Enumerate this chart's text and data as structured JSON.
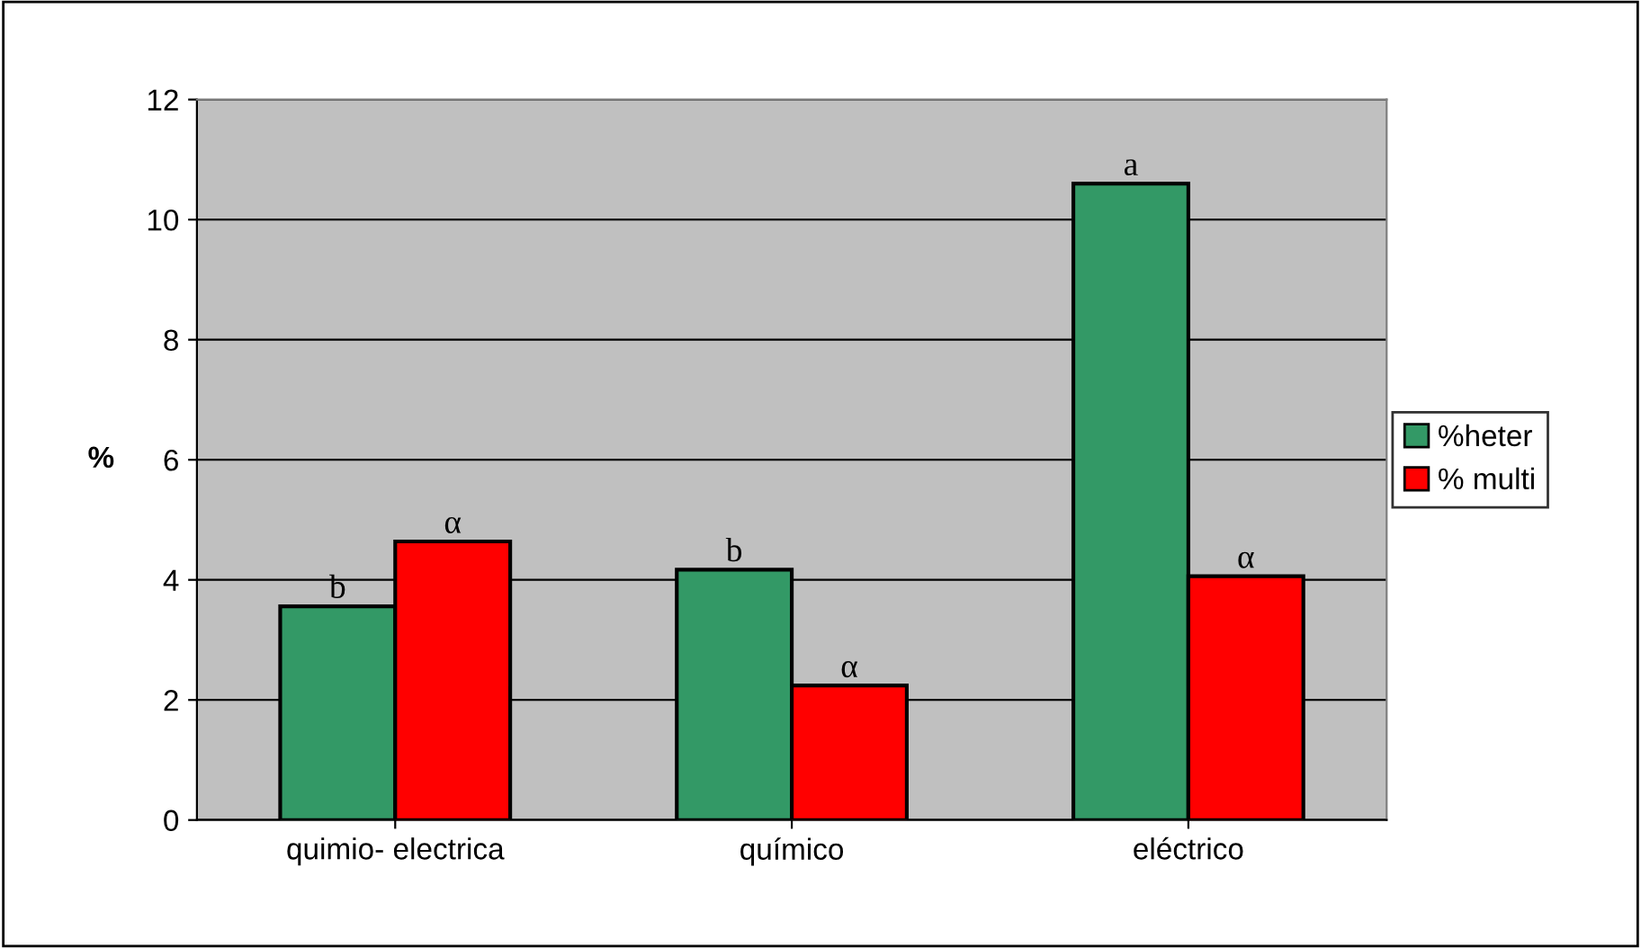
{
  "chart_data": {
    "type": "bar",
    "ylabel": "%",
    "categories": [
      "quimio- electrica",
      "químico",
      "eléctrico"
    ],
    "series": [
      {
        "name": "%heter",
        "color": "#339966",
        "values": [
          3.56,
          4.17,
          10.6
        ]
      },
      {
        "name": "% multi",
        "color": "#ff0000",
        "values": [
          4.64,
          2.24,
          4.06
        ]
      }
    ],
    "value_labels": [
      [
        "b",
        "b",
        "a"
      ],
      [
        "α",
        "α",
        "α"
      ]
    ],
    "ylim": [
      0,
      12
    ],
    "yticks": [
      0,
      2,
      4,
      6,
      8,
      10,
      12
    ],
    "grid": "y",
    "legend": "right"
  }
}
